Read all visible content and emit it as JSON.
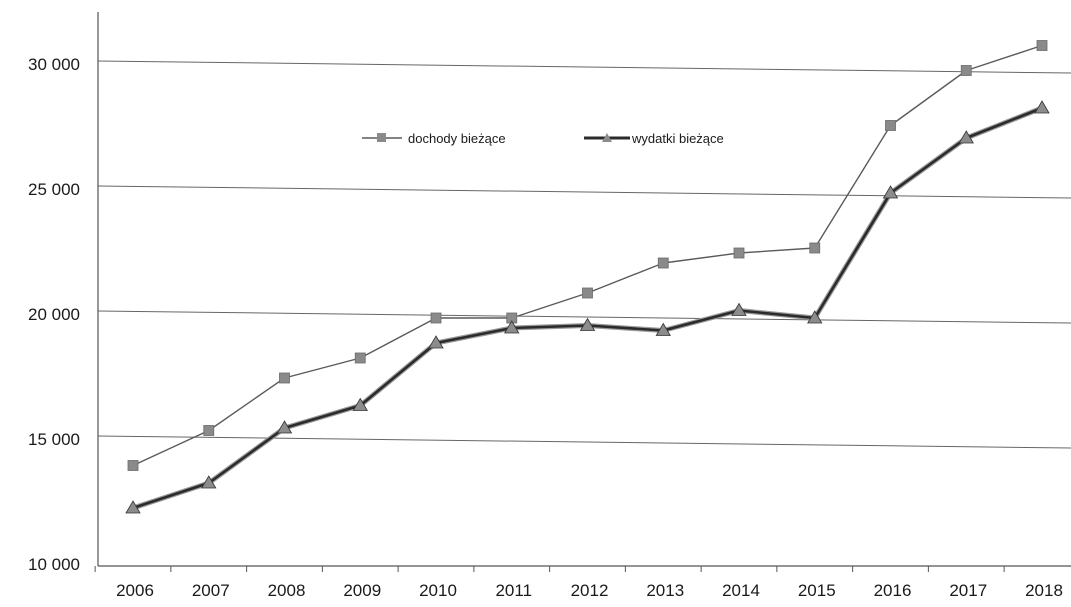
{
  "chart_data": {
    "type": "line",
    "title": "",
    "xlabel": "",
    "ylabel": "",
    "categories": [
      "2006",
      "2007",
      "2008",
      "2009",
      "2010",
      "2011",
      "2012",
      "2013",
      "2014",
      "2015",
      "2016",
      "2017",
      "2018"
    ],
    "ylim": [
      10000,
      32000
    ],
    "yticks": [
      10000,
      15000,
      20000,
      25000,
      30000
    ],
    "ytick_labels": [
      "10 000",
      "15 000",
      "20 000",
      "25 000",
      "30 000"
    ],
    "grid": true,
    "legend_position": "top-center",
    "series": [
      {
        "name": "dochody bieżące",
        "marker": "square",
        "color": "#5a5a5a",
        "marker_color": "#8a8a8a",
        "values": [
          13900,
          15300,
          17400,
          18200,
          19800,
          19800,
          20800,
          22000,
          22400,
          22600,
          27500,
          29700,
          30700
        ]
      },
      {
        "name": "wydatki bieżące",
        "marker": "triangle",
        "color": "#2b2b2b",
        "marker_color": "#8c8c8c",
        "values": [
          12200,
          13200,
          15400,
          16300,
          18800,
          19400,
          19500,
          19300,
          20100,
          19800,
          24800,
          27000,
          28200
        ]
      }
    ]
  }
}
